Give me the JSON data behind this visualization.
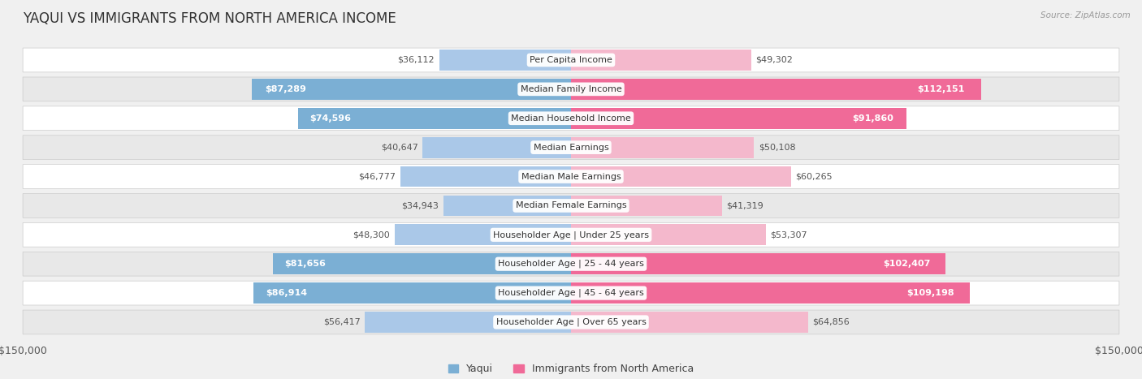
{
  "title": "YAQUI VS IMMIGRANTS FROM NORTH AMERICA INCOME",
  "source": "Source: ZipAtlas.com",
  "categories": [
    "Per Capita Income",
    "Median Family Income",
    "Median Household Income",
    "Median Earnings",
    "Median Male Earnings",
    "Median Female Earnings",
    "Householder Age | Under 25 years",
    "Householder Age | 25 - 44 years",
    "Householder Age | 45 - 64 years",
    "Householder Age | Over 65 years"
  ],
  "yaqui_values": [
    36112,
    87289,
    74596,
    40647,
    46777,
    34943,
    48300,
    81656,
    86914,
    56417
  ],
  "immigrant_values": [
    49302,
    112151,
    91860,
    50108,
    60265,
    41319,
    53307,
    102407,
    109198,
    64856
  ],
  "yaqui_labels": [
    "$36,112",
    "$87,289",
    "$74,596",
    "$40,647",
    "$46,777",
    "$34,943",
    "$48,300",
    "$81,656",
    "$86,914",
    "$56,417"
  ],
  "immigrant_labels": [
    "$49,302",
    "$112,151",
    "$91,860",
    "$50,108",
    "$60,265",
    "$41,319",
    "$53,307",
    "$102,407",
    "$109,198",
    "$64,856"
  ],
  "yaqui_color_light": "#aac8e8",
  "yaqui_color_dark": "#7bafd4",
  "immigrant_color_light": "#f4b8cc",
  "immigrant_color_dark": "#f06a98",
  "yaqui_threshold": 65000,
  "immigrant_threshold": 85000,
  "max_value": 150000,
  "background_color": "#f0f0f0",
  "row_colors": [
    "#ffffff",
    "#e8e8e8"
  ],
  "title_fontsize": 12,
  "cat_fontsize": 8,
  "val_fontsize": 8,
  "axis_fontsize": 9,
  "legend_fontsize": 9,
  "xlim": 150000
}
